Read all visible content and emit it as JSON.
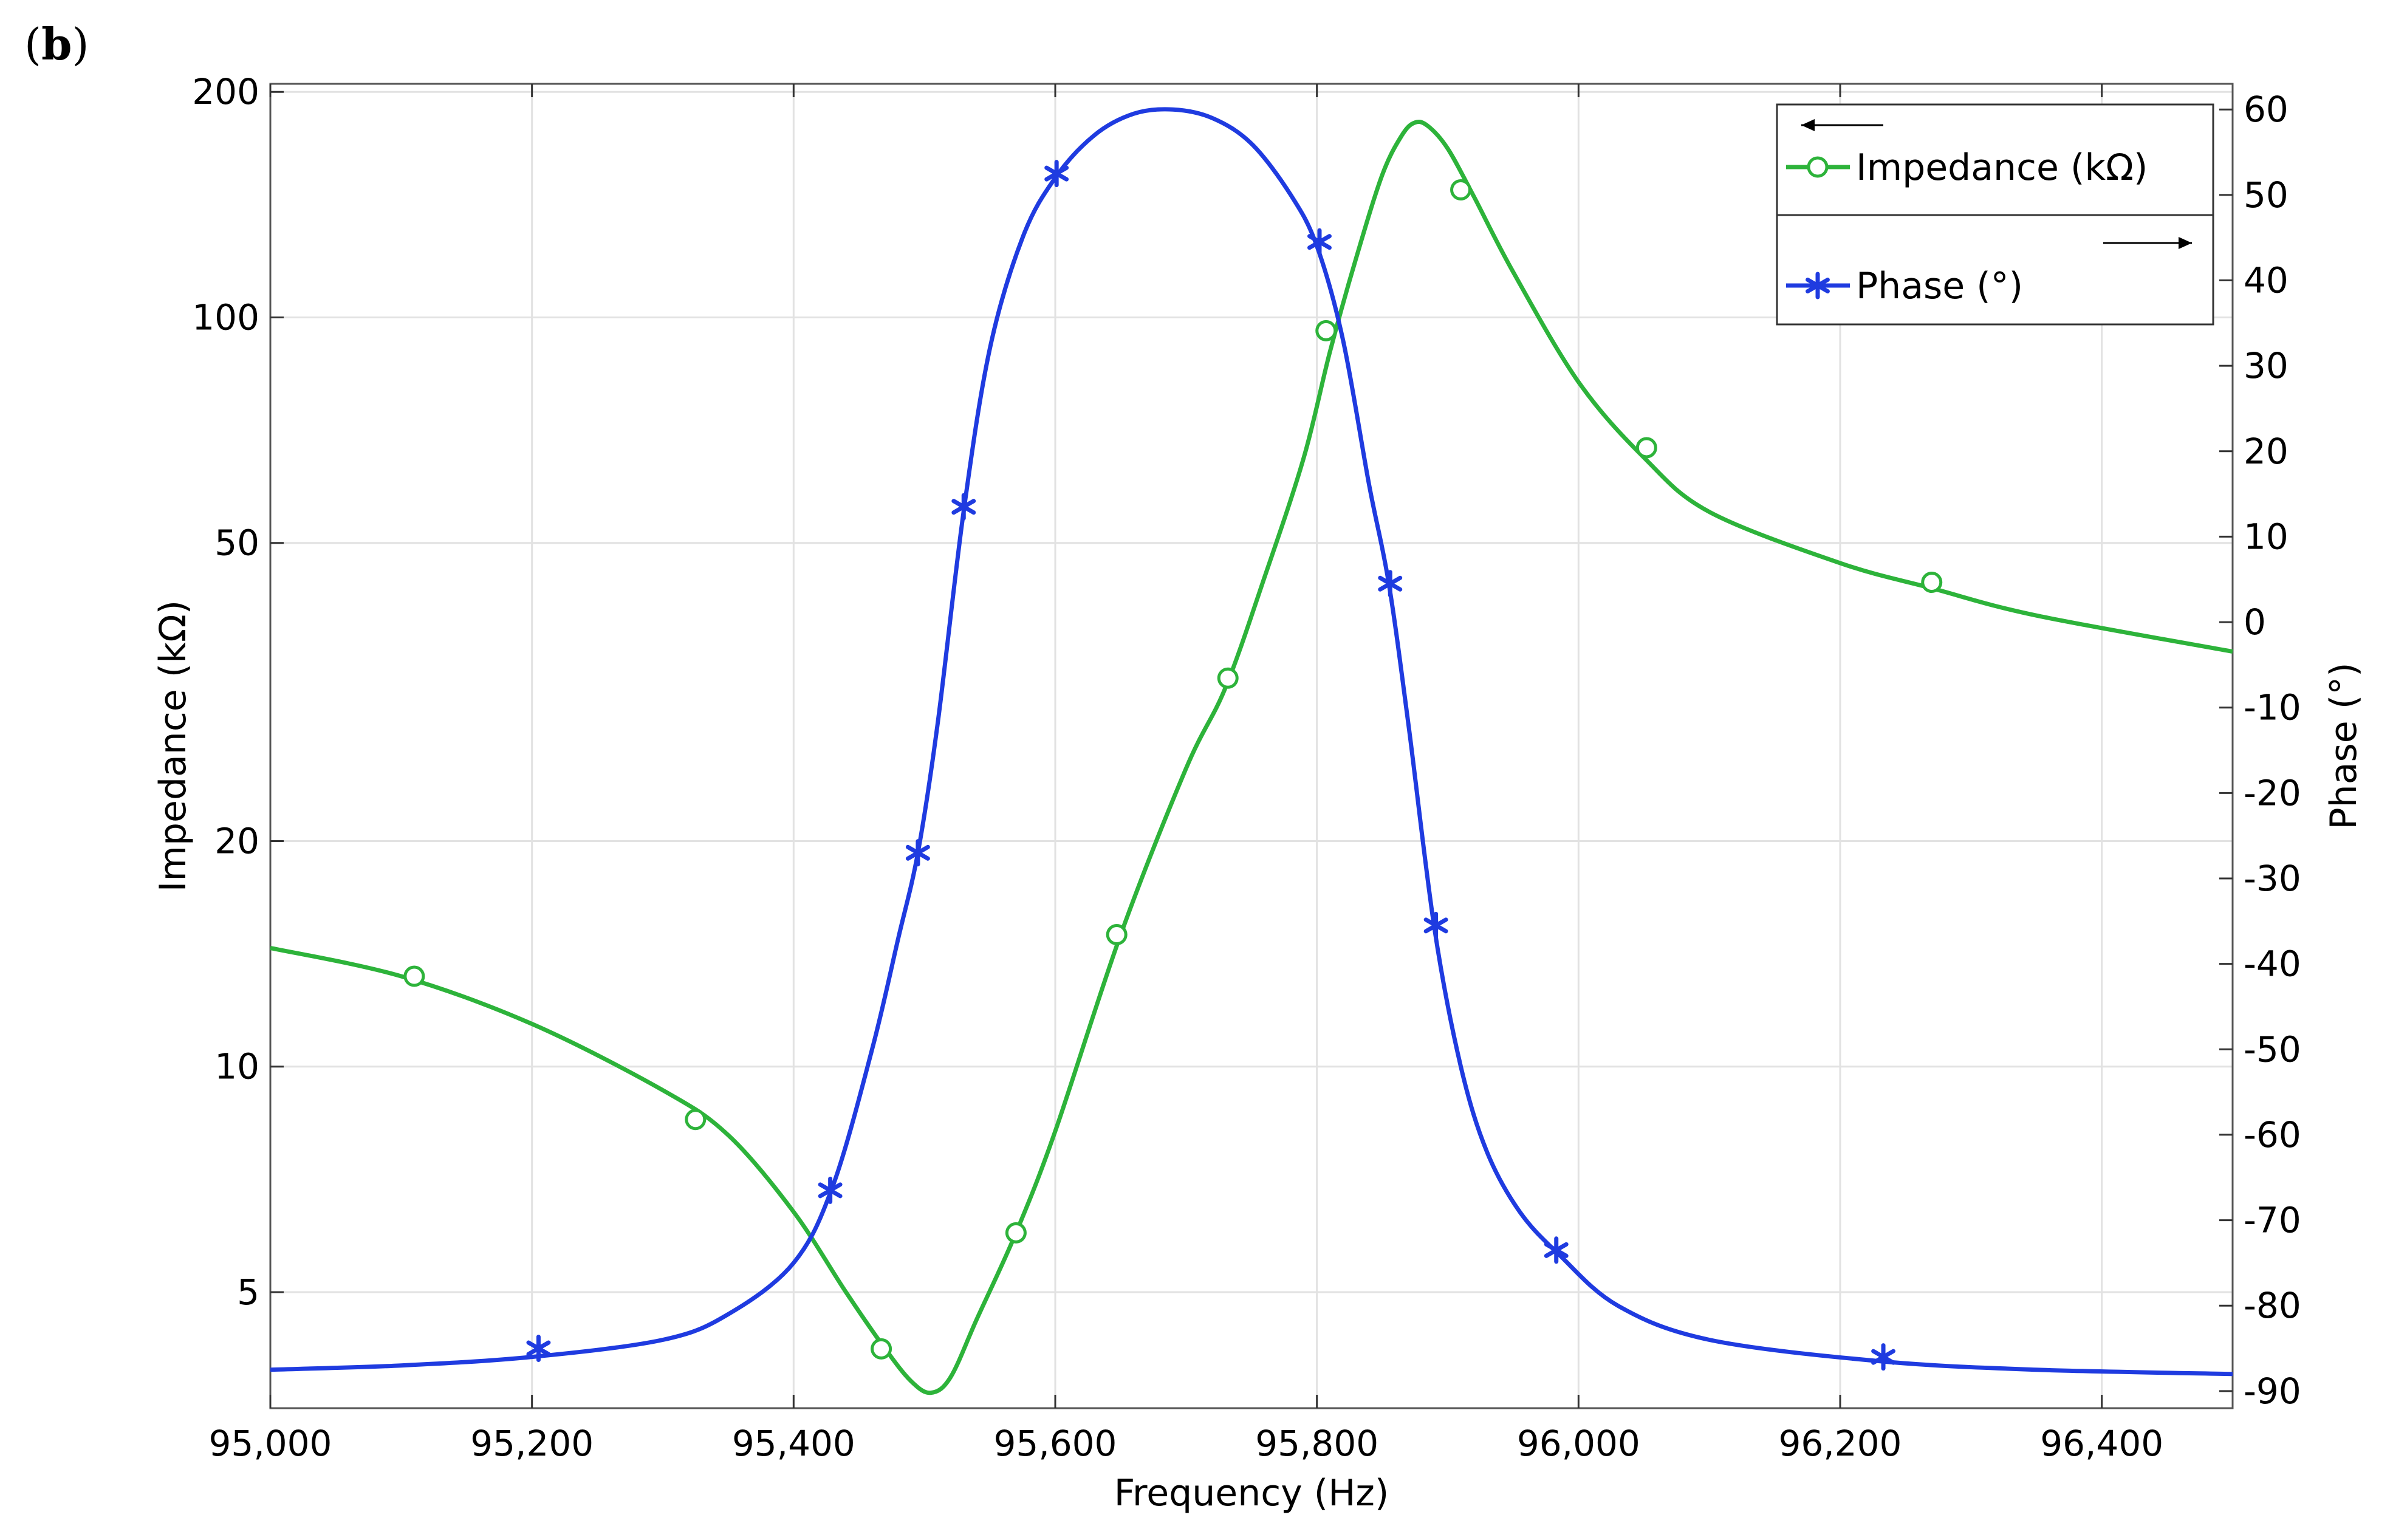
{
  "panel_label": {
    "open": "(",
    "letter": "b",
    "close": ")"
  },
  "chart_data": {
    "type": "line",
    "xlabel": "Frequency (Hz)",
    "ylabel_left": "Impedance (kΩ)",
    "ylabel_right": "Phase (°)",
    "xlim": [
      95000,
      96500
    ],
    "x_ticks": [
      95000,
      95200,
      95400,
      95600,
      95800,
      96000,
      96200,
      96400
    ],
    "x_tick_labels": [
      "95,000",
      "95,200",
      "95,400",
      "95,600",
      "95,800",
      "96,000",
      "96,200",
      "96,400"
    ],
    "y_left": {
      "scale": "log",
      "lim": [
        3.5,
        205
      ],
      "ticks": [
        5,
        10,
        20,
        50,
        100,
        200
      ],
      "tick_labels": [
        "5",
        "10",
        "20",
        "50",
        "100",
        "200"
      ]
    },
    "y_right": {
      "scale": "linear",
      "lim": [
        -92,
        63
      ],
      "ticks": [
        60,
        50,
        40,
        30,
        20,
        10,
        0,
        -10,
        -20,
        -30,
        -40,
        -50,
        -60,
        -70,
        -80,
        -90
      ],
      "tick_labels": [
        "60",
        "50",
        "40",
        "30",
        "20",
        "10",
        "0",
        "-10",
        "-20",
        "-30",
        "-40",
        "-50",
        "-60",
        "-70",
        "-80",
        "-90"
      ]
    },
    "grid": true,
    "legend_position": "top-right",
    "colors": {
      "impedance": "#2db33a",
      "phase": "#1f3be0"
    },
    "series": [
      {
        "name": "Impedance (kΩ)",
        "axis": "left",
        "marker": "circle",
        "x": [
          95000,
          95100,
          95200,
          95300,
          95350,
          95400,
          95440,
          95470,
          95490,
          95505,
          95520,
          95540,
          95570,
          95600,
          95650,
          95700,
          95730,
          95760,
          95790,
          95810,
          95830,
          95850,
          95865,
          95875,
          95885,
          95900,
          95920,
          95950,
          96000,
          96050,
          96100,
          96200,
          96270,
          96350,
          96500
        ],
        "y": [
          14.4,
          13.2,
          11.4,
          9.3,
          8.1,
          6.4,
          5.0,
          4.2,
          3.8,
          3.67,
          3.85,
          4.6,
          6.0,
          8.2,
          15.0,
          25.0,
          32.0,
          45.0,
          65.0,
          90.0,
          120.0,
          155.0,
          175.0,
          182.0,
          180.0,
          168.0,
          145.0,
          115.0,
          82.0,
          65.0,
          55.0,
          47.0,
          43.5,
          40.0,
          35.8
        ]
      },
      {
        "name": "Phase (°)",
        "axis": "right",
        "marker": "star",
        "x": [
          95000,
          95100,
          95200,
          95300,
          95350,
          95400,
          95430,
          95460,
          95480,
          95495,
          95510,
          95530,
          95550,
          95575,
          95600,
          95630,
          95660,
          95690,
          95720,
          95750,
          95780,
          95800,
          95820,
          95840,
          95855,
          95870,
          95890,
          95910,
          95930,
          95955,
          95985,
          96030,
          96100,
          96230,
          96350,
          96500
        ],
        "y": [
          -87.5,
          -87,
          -86,
          -84,
          -81,
          -75,
          -66,
          -50,
          -37,
          -27,
          -12,
          13,
          32,
          45,
          52,
          57,
          59.5,
          60,
          59,
          56,
          50,
          44,
          33,
          16,
          4.5,
          -12,
          -36,
          -52,
          -62,
          -69,
          -74,
          -80,
          -84,
          -86.5,
          -87.5,
          -88
        ]
      }
    ],
    "markers": {
      "impedance": {
        "x": [
          95110,
          95325,
          95467,
          95570,
          95647,
          95732,
          95807,
          95910,
          96052,
          96270
        ],
        "y": [
          13.2,
          8.5,
          4.2,
          6.0,
          15.0,
          33.0,
          96.0,
          148.0,
          67.0,
          44.3
        ]
      },
      "phase": {
        "x": [
          95205,
          95428,
          95495,
          95530,
          95601,
          95802,
          95856,
          95891,
          95983,
          96233
        ],
        "y": [
          -85,
          -66.5,
          -27,
          13.5,
          52.5,
          44.5,
          4.5,
          -35.5,
          -73.5,
          -86
        ]
      }
    }
  }
}
